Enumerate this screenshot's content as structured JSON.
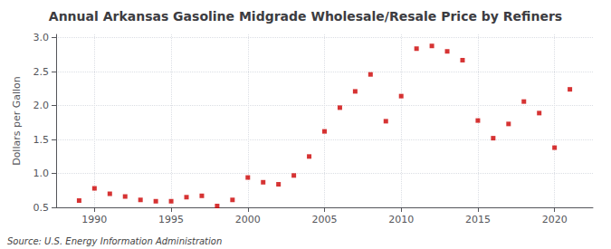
{
  "chart_data": {
    "type": "scatter",
    "title": "Annual Arkansas Gasoline Midgrade Wholesale/Resale Price by Refiners",
    "ylabel": "Dollars per Gallon",
    "annotations": [
      "Source: U.S. Energy Information Administration"
    ],
    "x": [
      1989,
      1990,
      1991,
      1992,
      1993,
      1994,
      1995,
      1996,
      1997,
      1998,
      1999,
      2000,
      2001,
      2002,
      2003,
      2004,
      2005,
      2006,
      2007,
      2008,
      2009,
      2010,
      2011,
      2012,
      2013,
      2014,
      2015,
      2016,
      2017,
      2018,
      2019,
      2020,
      2021
    ],
    "values": [
      0.6,
      0.78,
      0.7,
      0.66,
      0.61,
      0.59,
      0.59,
      0.65,
      0.67,
      0.52,
      0.61,
      0.94,
      0.87,
      0.84,
      0.97,
      1.25,
      1.62,
      1.97,
      2.21,
      2.46,
      1.77,
      2.14,
      2.84,
      2.88,
      2.8,
      2.67,
      1.78,
      1.52,
      1.73,
      2.06,
      1.89,
      1.38,
      2.24
    ],
    "color": "#cc0000",
    "marker": "square",
    "xlim": [
      1987.5,
      2022.5
    ],
    "xticks": [
      1990,
      1995,
      2000,
      2005,
      2010,
      2015,
      2020
    ],
    "ylim": [
      0.5,
      3.05
    ],
    "yticks": [
      0.5,
      {
        "value": 1.0,
        "label": "1.0"
      },
      1.5,
      {
        "value": 2.0,
        "label": "2.0"
      },
      2.5,
      {
        "value": 3.0,
        "label": "3.0"
      }
    ],
    "grid": true
  }
}
